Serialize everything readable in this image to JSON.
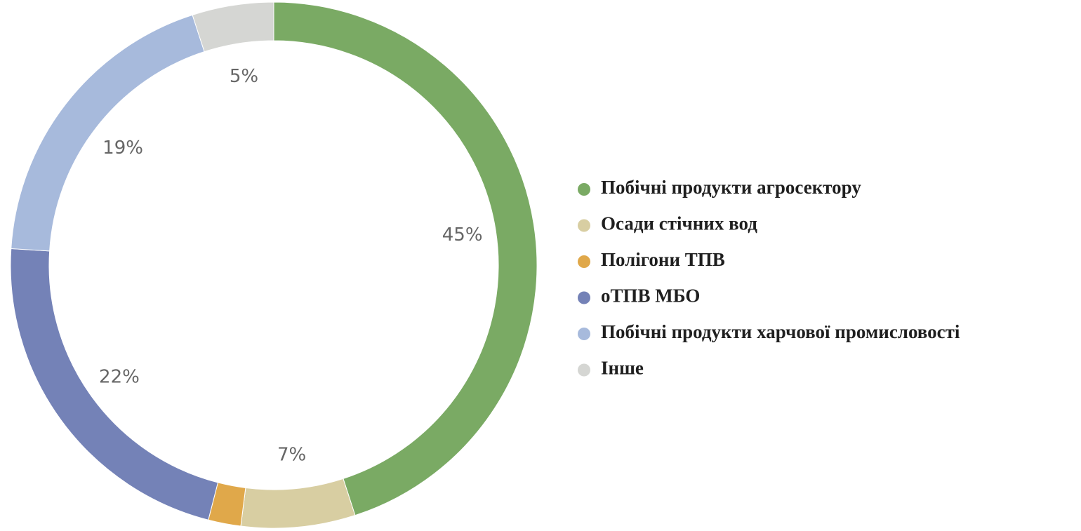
{
  "chart_data": {
    "type": "donut",
    "categories": [
      "Побічні продукти агросектору",
      "Осади стічних вод",
      "Полігони ТПВ",
      "оТПВ МБО",
      "Побічні продукти харчової промисловості",
      "Інше"
    ],
    "values": [
      45,
      7,
      2,
      22,
      19,
      5
    ],
    "value_labels": [
      "45%",
      "7%",
      null,
      "22%",
      "19%",
      "5%"
    ],
    "colors": [
      "#7aaa64",
      "#d8cea2",
      "#e0a84a",
      "#7482b7",
      "#a7badc",
      "#d5d6d3"
    ],
    "legend": "right"
  }
}
